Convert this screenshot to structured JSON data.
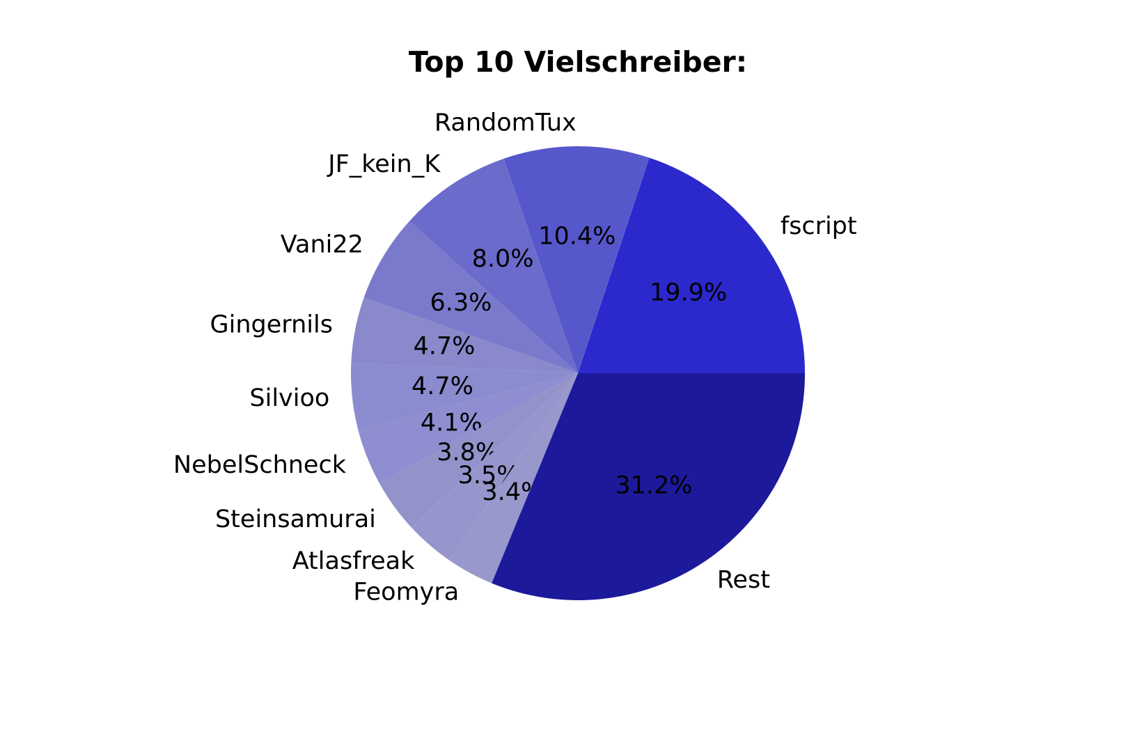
{
  "chart_data": {
    "type": "pie",
    "title": "Top 10 Vielschreiber:",
    "categories": [
      "fscript",
      "RandomTux",
      "JF_kein_K",
      "Vani22",
      "Gingernils",
      "Silvioo",
      "NebelSchneck",
      "Steinsamurai",
      "Atlasfreak",
      "Feomyra",
      "Rest"
    ],
    "values": [
      19.9,
      10.4,
      8.0,
      6.3,
      4.7,
      4.7,
      4.1,
      3.8,
      3.5,
      3.4,
      31.2
    ],
    "value_labels": [
      "19.9%",
      "10.4%",
      "8.0%",
      "6.3%",
      "4.7%",
      "4.7%",
      "4.1%",
      "3.8%",
      "3.5%",
      "3.4%",
      "31.2%"
    ],
    "colors": [
      "#2b28cc",
      "#5757cc",
      "#6b6bcc",
      "#7a7acc",
      "#8989cc",
      "#8b8bcf",
      "#8e8ed0",
      "#9393cc",
      "#9696cc",
      "#9898cc",
      "#1c1a9a"
    ]
  }
}
